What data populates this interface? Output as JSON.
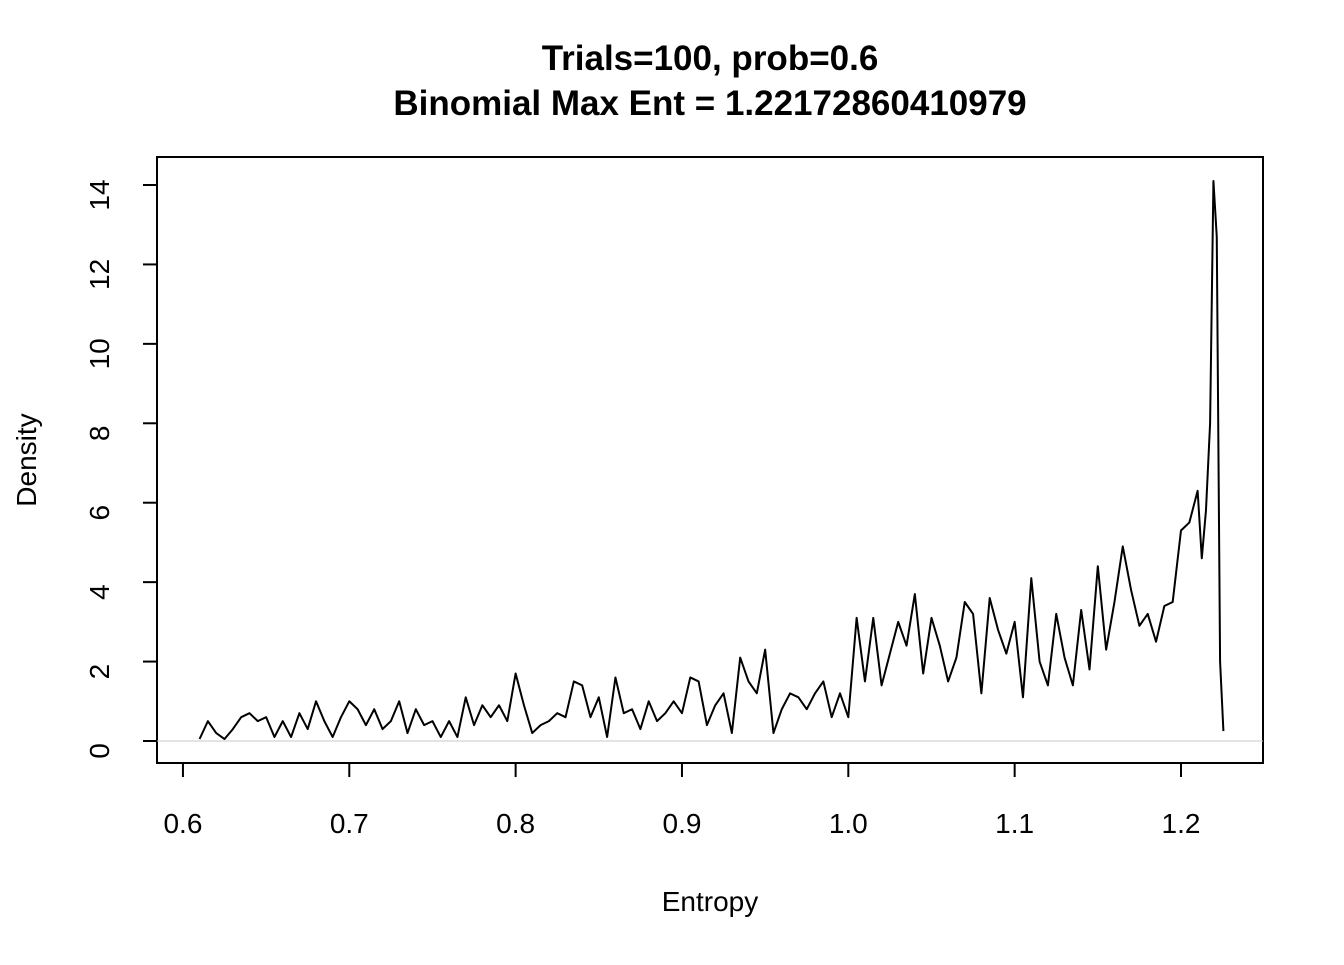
{
  "chart_data": {
    "type": "line",
    "title": "Trials=100, prob=0.6",
    "subtitle": "Binomial Max Ent =  1.22172860410979",
    "x_label": "Entropy",
    "y_label": "Density",
    "x": [
      0.61,
      0.615,
      0.62,
      0.625,
      0.63,
      0.635,
      0.64,
      0.645,
      0.65,
      0.655,
      0.66,
      0.665,
      0.67,
      0.675,
      0.68,
      0.685,
      0.69,
      0.695,
      0.7,
      0.705,
      0.71,
      0.715,
      0.72,
      0.725,
      0.73,
      0.735,
      0.74,
      0.745,
      0.75,
      0.755,
      0.76,
      0.765,
      0.77,
      0.775,
      0.78,
      0.785,
      0.79,
      0.795,
      0.8,
      0.805,
      0.81,
      0.815,
      0.82,
      0.825,
      0.83,
      0.835,
      0.84,
      0.845,
      0.85,
      0.855,
      0.86,
      0.865,
      0.87,
      0.875,
      0.88,
      0.885,
      0.89,
      0.895,
      0.9,
      0.905,
      0.91,
      0.915,
      0.92,
      0.925,
      0.93,
      0.935,
      0.94,
      0.945,
      0.95,
      0.955,
      0.96,
      0.965,
      0.97,
      0.975,
      0.98,
      0.985,
      0.99,
      0.995,
      1.0,
      1.005,
      1.01,
      1.015,
      1.02,
      1.025,
      1.03,
      1.035,
      1.04,
      1.045,
      1.05,
      1.055,
      1.06,
      1.065,
      1.07,
      1.075,
      1.08,
      1.085,
      1.09,
      1.095,
      1.1,
      1.105,
      1.11,
      1.115,
      1.12,
      1.125,
      1.13,
      1.135,
      1.14,
      1.145,
      1.15,
      1.155,
      1.16,
      1.165,
      1.17,
      1.175,
      1.18,
      1.185,
      1.19,
      1.195,
      1.2,
      1.205,
      1.21,
      1.2125,
      1.215,
      1.2175,
      1.2195,
      1.2215,
      1.2235,
      1.2255
    ],
    "values": [
      0.05,
      0.5,
      0.2,
      0.05,
      0.3,
      0.6,
      0.7,
      0.5,
      0.6,
      0.1,
      0.5,
      0.1,
      0.7,
      0.3,
      1.0,
      0.5,
      0.1,
      0.6,
      1.0,
      0.8,
      0.4,
      0.8,
      0.3,
      0.5,
      1.0,
      0.2,
      0.8,
      0.4,
      0.5,
      0.1,
      0.5,
      0.1,
      1.1,
      0.4,
      0.9,
      0.6,
      0.9,
      0.5,
      1.7,
      0.9,
      0.2,
      0.4,
      0.5,
      0.7,
      0.6,
      1.5,
      1.4,
      0.6,
      1.1,
      0.1,
      1.6,
      0.7,
      0.8,
      0.3,
      1.0,
      0.5,
      0.7,
      1.0,
      0.7,
      1.6,
      1.5,
      0.4,
      0.9,
      1.2,
      0.2,
      2.1,
      1.5,
      1.2,
      2.3,
      0.2,
      0.8,
      1.2,
      1.1,
      0.8,
      1.2,
      1.5,
      0.6,
      1.2,
      0.6,
      3.1,
      1.5,
      3.1,
      1.4,
      2.2,
      3.0,
      2.4,
      3.7,
      1.7,
      3.1,
      2.4,
      1.5,
      2.1,
      3.5,
      3.2,
      1.2,
      3.6,
      2.8,
      2.2,
      3.0,
      1.1,
      4.1,
      2.0,
      1.4,
      3.2,
      2.1,
      1.4,
      3.3,
      1.8,
      4.4,
      2.3,
      3.5,
      4.9,
      3.8,
      2.9,
      3.2,
      2.5,
      3.4,
      3.5,
      5.3,
      5.5,
      6.3,
      4.6,
      5.8,
      8.0,
      14.1,
      12.7,
      2.0,
      0.25
    ],
    "color": "#000000",
    "zero_line": true,
    "xlim": [
      0.5844,
      1.2493
    ],
    "xticks": [
      0.6,
      0.7,
      0.8,
      0.9,
      {
        "value": 1.0,
        "label": "1.0"
      },
      1.1,
      1.2
    ],
    "ylim": [
      -0.554,
      14.705
    ],
    "yticks": [
      0,
      2,
      4,
      6,
      8,
      10,
      12,
      14
    ]
  }
}
